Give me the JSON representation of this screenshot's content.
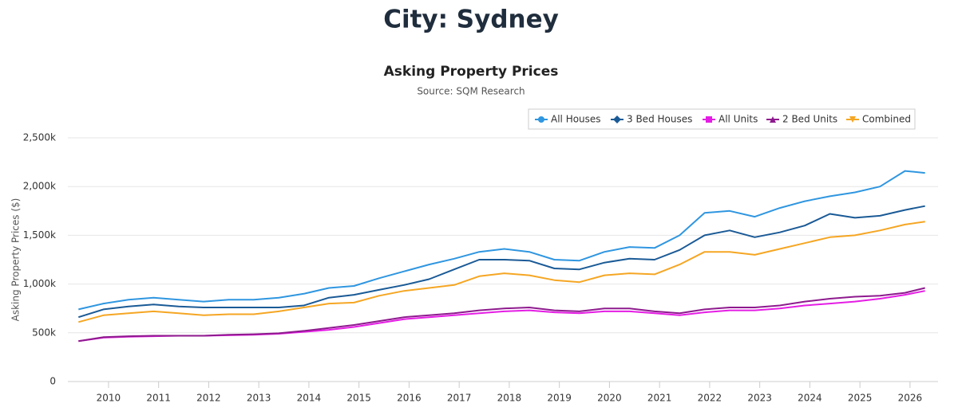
{
  "page_title": "City: Sydney",
  "chart_data": {
    "type": "line",
    "title": "Asking Property Prices",
    "subtitle": "Source: SQM Research",
    "y_label": "Asking Property Prices ($)",
    "x": [
      2009.4,
      2009.9,
      2010.4,
      2010.9,
      2011.4,
      2011.9,
      2012.4,
      2012.9,
      2013.4,
      2013.9,
      2014.4,
      2014.9,
      2015.4,
      2015.9,
      2016.4,
      2016.9,
      2017.4,
      2017.9,
      2018.4,
      2018.9,
      2019.4,
      2019.9,
      2020.4,
      2020.9,
      2021.4,
      2021.9,
      2022.4,
      2022.9,
      2023.4,
      2023.9,
      2024.4,
      2024.9,
      2025.4,
      2025.9,
      2026.3
    ],
    "xlim": [
      2009.3,
      2026.4
    ],
    "xticks": [
      2010,
      2011,
      2012,
      2013,
      2014,
      2015,
      2016,
      2017,
      2018,
      2019,
      2020,
      2021,
      2022,
      2023,
      2024,
      2025,
      2026
    ],
    "ylim": [
      0,
      2500000
    ],
    "yticks": [
      0,
      {
        "value": 500000,
        "label": "500k"
      },
      {
        "value": 1000000,
        "label": "1,000k"
      },
      {
        "value": 1500000,
        "label": "1,500k"
      },
      {
        "value": 2000000,
        "label": "2,000k"
      },
      {
        "value": 2500000,
        "label": "2,500k"
      }
    ],
    "grid": true,
    "legend": "top-right",
    "series": [
      {
        "name": "All Houses",
        "color": "#2f96e0",
        "marker": "circle",
        "values": [
          740000,
          800000,
          840000,
          860000,
          840000,
          820000,
          840000,
          840000,
          860000,
          900000,
          960000,
          980000,
          1060000,
          1130000,
          1200000,
          1260000,
          1330000,
          1360000,
          1330000,
          1250000,
          1240000,
          1330000,
          1380000,
          1370000,
          1500000,
          1730000,
          1750000,
          1690000,
          1780000,
          1850000,
          1900000,
          1940000,
          2000000,
          2160000,
          2140000
        ]
      },
      {
        "name": "3 Bed Houses",
        "color": "#1a5a96",
        "marker": "diamond",
        "values": [
          660000,
          740000,
          770000,
          790000,
          770000,
          760000,
          760000,
          760000,
          760000,
          780000,
          860000,
          890000,
          940000,
          990000,
          1050000,
          1150000,
          1250000,
          1250000,
          1240000,
          1160000,
          1150000,
          1220000,
          1260000,
          1250000,
          1350000,
          1500000,
          1550000,
          1480000,
          1530000,
          1600000,
          1720000,
          1680000,
          1700000,
          1760000,
          1800000
        ]
      },
      {
        "name": "All Units",
        "color": "#e41de4",
        "marker": "square",
        "values": [
          415000,
          450000,
          460000,
          465000,
          470000,
          470000,
          475000,
          480000,
          490000,
          510000,
          530000,
          560000,
          600000,
          640000,
          660000,
          680000,
          700000,
          720000,
          730000,
          710000,
          700000,
          720000,
          720000,
          700000,
          680000,
          710000,
          730000,
          730000,
          750000,
          780000,
          800000,
          820000,
          850000,
          890000,
          930000
        ]
      },
      {
        "name": "2 Bed Units",
        "color": "#8e1a8e",
        "marker": "triangle",
        "values": [
          415000,
          455000,
          465000,
          470000,
          470000,
          470000,
          480000,
          485000,
          495000,
          520000,
          550000,
          580000,
          620000,
          660000,
          680000,
          700000,
          730000,
          750000,
          760000,
          730000,
          720000,
          750000,
          750000,
          720000,
          700000,
          740000,
          760000,
          760000,
          780000,
          820000,
          850000,
          870000,
          880000,
          910000,
          960000
        ]
      },
      {
        "name": "Combined",
        "color": "#f5a623",
        "marker": "triangle-down",
        "values": [
          610000,
          680000,
          700000,
          720000,
          700000,
          680000,
          690000,
          690000,
          720000,
          760000,
          800000,
          810000,
          880000,
          930000,
          960000,
          990000,
          1080000,
          1110000,
          1090000,
          1040000,
          1020000,
          1090000,
          1110000,
          1100000,
          1200000,
          1330000,
          1330000,
          1300000,
          1360000,
          1420000,
          1480000,
          1500000,
          1550000,
          1610000,
          1640000
        ]
      }
    ]
  }
}
